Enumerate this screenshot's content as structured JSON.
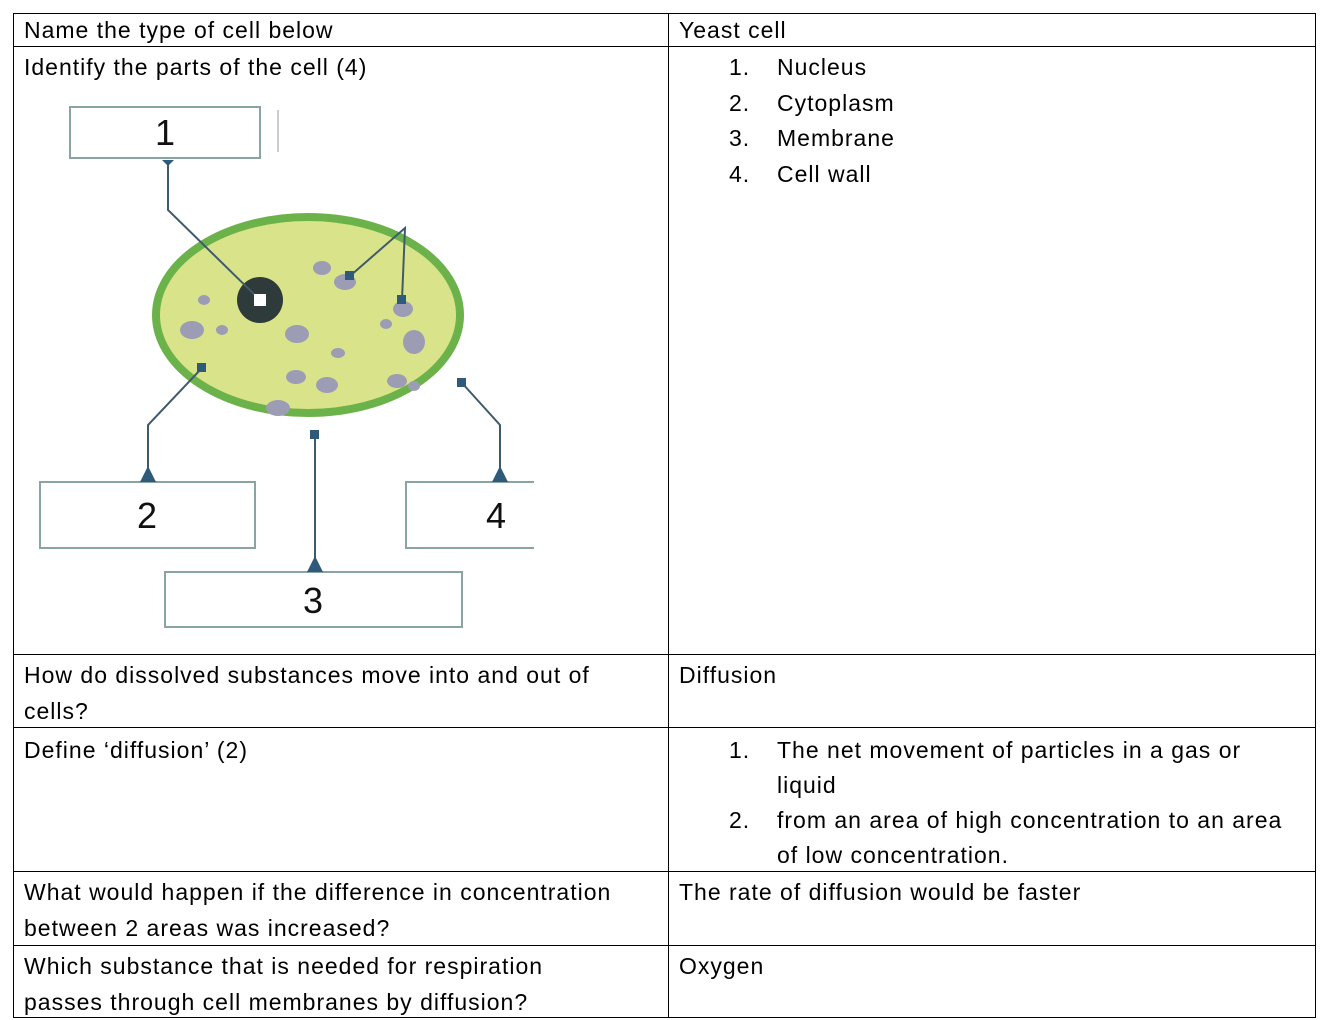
{
  "table": {
    "rows": [
      {
        "question": "Name the type of cell below",
        "answer": "Yeast cell"
      },
      {
        "question": "Identify the parts of the cell (4)",
        "answer": [
          "Nucleus",
          "Cytoplasm",
          "Membrane",
          "Cell wall"
        ]
      },
      {
        "question": "How do dissolved substances move into and out of cells?",
        "answer": "Diffusion"
      },
      {
        "question": "Define ‘diffusion’ (2)",
        "answer": [
          "The net movement of particles in a gas or liquid",
          "from an area of high concentration to an area of low concentration."
        ]
      },
      {
        "question": "What would happen if the difference in concentration between 2 areas was increased?",
        "answer": "The rate of diffusion would be faster"
      },
      {
        "question": "Which substance that is needed for respiration passes through cell membranes by diffusion?",
        "answer": "Oxygen"
      }
    ]
  },
  "diagram": {
    "labels": [
      "1",
      "2",
      "3",
      "4"
    ]
  }
}
